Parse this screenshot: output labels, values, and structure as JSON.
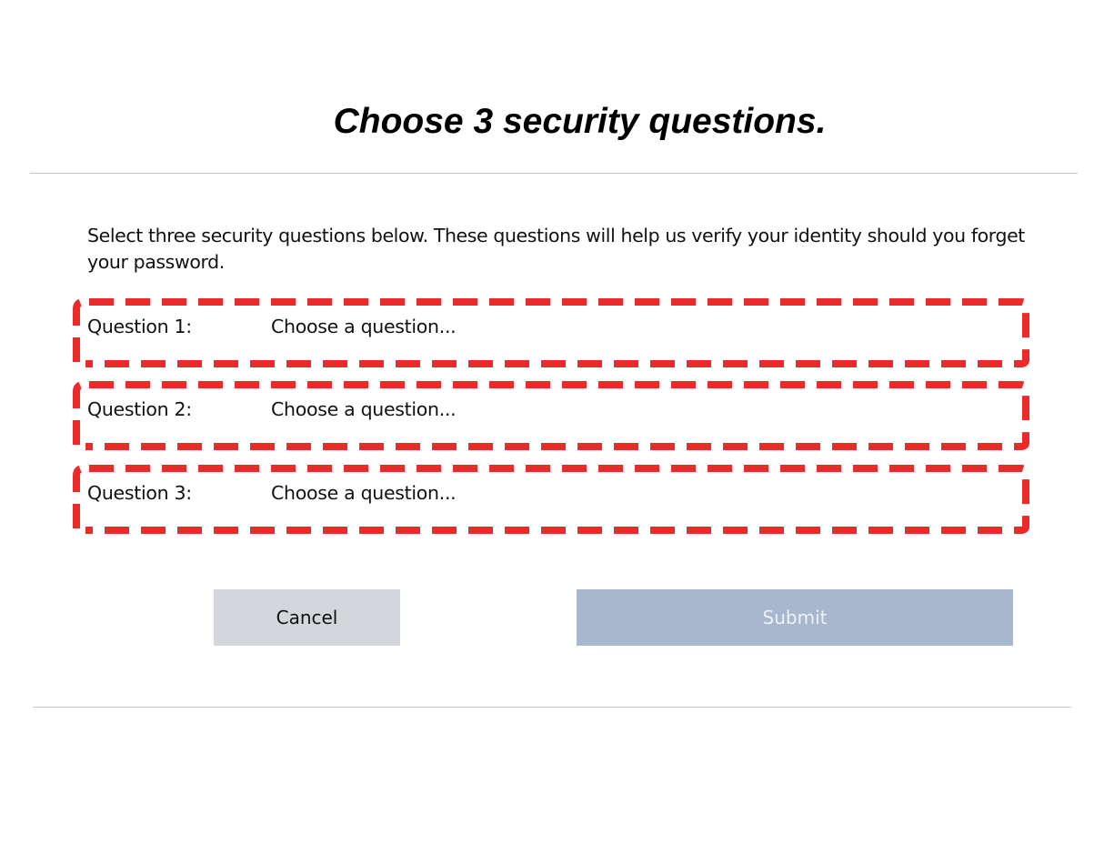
{
  "page": {
    "title": "Choose 3 security questions.",
    "intro": "Select three security questions below. These questions will help us verify your identity should you forget your password."
  },
  "questions": [
    {
      "label": "Question 1:",
      "value": "Choose a question..."
    },
    {
      "label": "Question 2:",
      "value": "Choose a question..."
    },
    {
      "label": "Question 3:",
      "value": "Choose a question..."
    }
  ],
  "buttons": {
    "cancel": "Cancel",
    "submit": "Submit"
  },
  "colors": {
    "highlight": "#ED2A2A",
    "submit_bg": "#A6B7CE",
    "cancel_bg": "#D3D7DC"
  }
}
